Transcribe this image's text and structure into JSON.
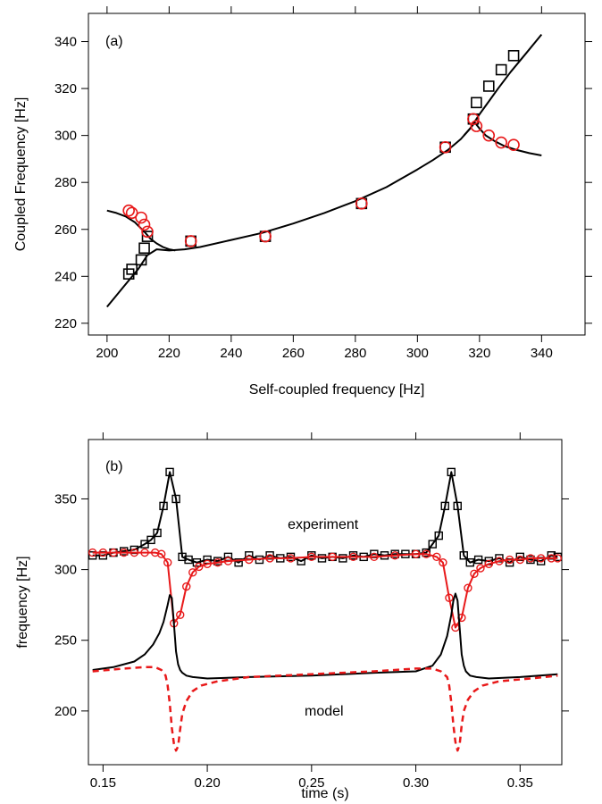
{
  "chart_data": [
    {
      "type": "scatter",
      "panel_label": "(a)",
      "xlabel": "Self-coupled frequency [Hz]",
      "ylabel": "Coupled Frequency [Hz]",
      "xlim": [
        194,
        354
      ],
      "ylim": [
        215,
        352
      ],
      "xticks": [
        200,
        220,
        240,
        260,
        280,
        300,
        320,
        340
      ],
      "yticks": [
        220,
        240,
        260,
        280,
        300,
        320,
        340
      ],
      "series": [
        {
          "marker": "square",
          "color": "#000000",
          "x": [
            207,
            208,
            211,
            212,
            213,
            227,
            251,
            282,
            309,
            318,
            319,
            323,
            327,
            331
          ],
          "y": [
            241,
            243,
            247,
            252,
            257,
            255,
            257,
            271,
            295,
            307,
            314,
            321,
            328,
            334
          ]
        },
        {
          "marker": "circle",
          "color": "#e8191a",
          "x": [
            207,
            208,
            211,
            212,
            213,
            227,
            251,
            282,
            309,
            318,
            319,
            323,
            327,
            331
          ],
          "y": [
            268,
            267,
            265,
            262,
            259,
            255,
            257,
            271,
            295,
            307,
            304,
            300,
            297,
            296
          ]
        }
      ],
      "curves": [
        {
          "color": "#000000",
          "x": [
            200,
            205,
            210,
            213,
            216,
            220,
            225,
            230,
            240,
            250,
            260,
            270,
            280,
            290,
            300,
            305,
            310,
            314,
            317,
            318.5,
            320,
            323,
            326,
            330,
            335,
            340
          ],
          "y": [
            227,
            235,
            243,
            249,
            251.5,
            251,
            251.5,
            252.5,
            255.5,
            258.5,
            262.5,
            267,
            272,
            278,
            285.5,
            289.5,
            294,
            298.5,
            303,
            306,
            309,
            314.5,
            320,
            327,
            335,
            343
          ]
        },
        {
          "color": "#000000",
          "x": [
            200,
            203,
            206,
            209,
            212,
            214,
            216,
            218,
            220,
            222
          ],
          "y": [
            268,
            267,
            265.5,
            263,
            259,
            256,
            254,
            252.5,
            251.5,
            251
          ]
        },
        {
          "color": "#000000",
          "x": [
            315,
            317,
            318.5,
            320,
            322,
            325,
            328,
            332,
            336,
            340
          ],
          "y": [
            300,
            303,
            305.5,
            303,
            300,
            297.5,
            295.5,
            293.8,
            292.5,
            291.5
          ]
        }
      ]
    },
    {
      "type": "line",
      "panel_label": "(b)",
      "xlabel": "time (s)",
      "ylabel": "frequency [Hz]",
      "xlim": [
        0.143,
        0.37
      ],
      "ylim": [
        162,
        392
      ],
      "xticks": [
        0.15,
        0.2,
        0.25,
        0.3,
        0.35
      ],
      "xtick_labels": [
        "0.15",
        "0.20",
        "0.25",
        "0.30",
        "0.35"
      ],
      "yticks": [
        200,
        250,
        300,
        350
      ],
      "annotations": [
        {
          "text": "experiment",
          "x": 0.2555,
          "y": 332
        },
        {
          "text": "model",
          "x": 0.256,
          "y": 200
        }
      ],
      "series": [
        {
          "name": "",
          "color": "#000000",
          "marker": "square",
          "style": "solid",
          "x": [
            0.145,
            0.15,
            0.155,
            0.16,
            0.165,
            0.17,
            0.173,
            0.176,
            0.179,
            0.182,
            0.185,
            0.188,
            0.191,
            0.195,
            0.2,
            0.205,
            0.21,
            0.215,
            0.22,
            0.225,
            0.23,
            0.235,
            0.24,
            0.245,
            0.25,
            0.255,
            0.26,
            0.265,
            0.27,
            0.275,
            0.28,
            0.285,
            0.29,
            0.295,
            0.3,
            0.305,
            0.308,
            0.311,
            0.314,
            0.317,
            0.32,
            0.323,
            0.326,
            0.33,
            0.335,
            0.34,
            0.345,
            0.35,
            0.355,
            0.36,
            0.365,
            0.368
          ],
          "y": [
            310,
            310,
            312,
            313,
            314,
            318,
            321,
            326,
            345,
            369,
            350,
            309,
            307,
            305,
            307,
            306,
            309,
            305,
            310,
            307,
            310,
            308,
            309,
            306,
            310,
            308,
            309,
            308,
            310,
            309,
            311,
            310,
            311,
            311,
            311,
            312,
            318,
            324,
            345,
            369,
            345,
            310,
            305,
            307,
            306,
            308,
            305,
            309,
            307,
            306,
            310,
            309
          ]
        },
        {
          "name": "",
          "color": "#e8191a",
          "marker": "circle",
          "style": "solid",
          "x": [
            0.145,
            0.15,
            0.155,
            0.16,
            0.165,
            0.17,
            0.175,
            0.178,
            0.181,
            0.184,
            0.187,
            0.19,
            0.193,
            0.196,
            0.2,
            0.205,
            0.21,
            0.22,
            0.23,
            0.24,
            0.25,
            0.26,
            0.27,
            0.28,
            0.29,
            0.3,
            0.305,
            0.31,
            0.313,
            0.316,
            0.319,
            0.322,
            0.325,
            0.328,
            0.331,
            0.335,
            0.34,
            0.345,
            0.35,
            0.355,
            0.36,
            0.365,
            0.368
          ],
          "y": [
            312,
            312,
            312,
            312,
            312,
            312,
            312,
            311,
            305,
            262,
            268,
            288,
            298,
            302,
            304,
            305,
            306,
            307,
            308,
            308,
            309,
            309,
            309,
            309,
            310,
            311,
            311,
            309,
            305,
            280,
            259,
            266,
            287,
            297,
            301,
            304,
            306,
            307,
            307,
            308,
            308,
            308,
            308
          ]
        },
        {
          "name": "",
          "color": "#000000",
          "marker": "none",
          "style": "solid",
          "x": [
            0.145,
            0.155,
            0.165,
            0.17,
            0.174,
            0.177,
            0.179,
            0.181,
            0.182,
            0.183,
            0.184,
            0.185,
            0.186,
            0.187,
            0.188,
            0.19,
            0.193,
            0.2,
            0.22,
            0.25,
            0.28,
            0.3,
            0.308,
            0.312,
            0.315,
            0.317,
            0.318,
            0.319,
            0.32,
            0.321,
            0.322,
            0.323,
            0.324,
            0.326,
            0.329,
            0.335,
            0.35,
            0.368
          ],
          "y": [
            229,
            231,
            235,
            240,
            247,
            255,
            263,
            275,
            282,
            280,
            262,
            242,
            233,
            229,
            227,
            225,
            224,
            223,
            224,
            225,
            227,
            228,
            232,
            240,
            253,
            268,
            278,
            283,
            278,
            259,
            240,
            232,
            228,
            225,
            224,
            223,
            224,
            226
          ]
        },
        {
          "name": "",
          "color": "#e8191a",
          "marker": "none",
          "style": "dashed",
          "x": [
            0.145,
            0.16,
            0.17,
            0.175,
            0.178,
            0.18,
            0.181,
            0.182,
            0.183,
            0.184,
            0.185,
            0.186,
            0.187,
            0.188,
            0.19,
            0.193,
            0.197,
            0.205,
            0.22,
            0.25,
            0.28,
            0.3,
            0.308,
            0.312,
            0.315,
            0.316,
            0.317,
            0.318,
            0.319,
            0.32,
            0.321,
            0.322,
            0.323,
            0.325,
            0.328,
            0.332,
            0.34,
            0.355,
            0.368
          ],
          "y": [
            228,
            230,
            231,
            231,
            229,
            225,
            218,
            205,
            188,
            177,
            172,
            175,
            187,
            198,
            207,
            214,
            218,
            221,
            224,
            226,
            228,
            230,
            230,
            228,
            224,
            218,
            206,
            190,
            178,
            172,
            176,
            190,
            200,
            208,
            214,
            218,
            221,
            223,
            225
          ]
        }
      ]
    }
  ]
}
